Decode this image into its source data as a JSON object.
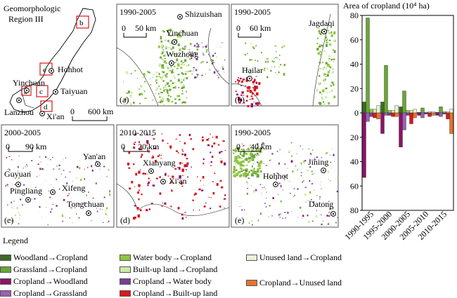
{
  "overview": {
    "title_line1": "Geomorphologic",
    "title_line2": "Region III",
    "cities": [
      "Hohhot",
      "Yinchuan",
      "Taiyuan",
      "Lanzhou",
      "Xi'an"
    ],
    "box_labels": [
      "a",
      "b",
      "c",
      "d",
      "e"
    ],
    "scale_zero": "0",
    "scale_label": "600 km"
  },
  "panels": [
    {
      "id": "a",
      "period": "1990-2005",
      "scale_zero": "0",
      "scale_label": "50 km",
      "cities": [
        "Shizuishan",
        "Yinchuan",
        "Wuzhong"
      ],
      "label": "(a)"
    },
    {
      "id": "b",
      "period": "1990-2005",
      "scale_zero": "0",
      "scale_label": "60 km",
      "cities": [
        "Jagdaqi",
        "Hailar"
      ],
      "label": "(b)"
    },
    {
      "id": "c",
      "period": "2000-2005",
      "scale_zero": "0",
      "scale_label": "90 km",
      "cities": [
        "Yan'an",
        "Guyuan",
        "Pingliang",
        "Xifeng",
        "Tongchuan"
      ],
      "label": "(c)"
    },
    {
      "id": "d",
      "period": "2010-2015",
      "scale_zero": "0",
      "scale_label": "20 km",
      "cities": [
        "Xianyang",
        "Xi'an"
      ],
      "label": "(d)"
    },
    {
      "id": "e",
      "period": "1990-2005",
      "scale_zero": "0",
      "scale_label": "40 km",
      "cities": [
        "Jining",
        "Hohhot",
        "Datong"
      ],
      "label": "(e)"
    }
  ],
  "legend": {
    "title": "Legend",
    "items": [
      {
        "label": "Woodland→Cropland",
        "color": "#3a6b1f"
      },
      {
        "label": "Grassland→Cropland",
        "color": "#6aa539"
      },
      {
        "label": "Cropland→Woodland",
        "color": "#8a1466"
      },
      {
        "label": "Cropland→Grassland",
        "color": "#9b5fb5"
      },
      {
        "label": "Water body→Cropland",
        "color": "#8cc63f"
      },
      {
        "label": "Built-up land→Cropland",
        "color": "#cfe8a8"
      },
      {
        "label": "Cropland→Water body",
        "color": "#7a3d98"
      },
      {
        "label": "Cropland→Built-up land",
        "color": "#d7191c"
      },
      {
        "label": "Unused land→Cropland",
        "color": "#e9f3d6"
      },
      {
        "label": "Cropland→Unused land",
        "color": "#e8742a"
      }
    ]
  },
  "chart_data": {
    "type": "bar",
    "title": "Area of cropland (10⁴ ha)",
    "categories": [
      "1990-1995",
      "1995-2000",
      "2000-2005",
      "2005-2010",
      "2010-2015"
    ],
    "ylim": [
      -80,
      80
    ],
    "yticks": [
      "80",
      "60",
      "40",
      "20",
      "0",
      "20",
      "40",
      "60",
      "80"
    ],
    "grid": false,
    "series": [
      {
        "name": "Woodland→Cropland",
        "color": "#3a6b1f",
        "values": [
          9,
          9,
          5,
          0.5,
          0.5
        ]
      },
      {
        "name": "Grassland→Cropland",
        "color": "#6aa539",
        "values": [
          78,
          39,
          18,
          4,
          5
        ]
      },
      {
        "name": "Water body→Cropland",
        "color": "#8cc63f",
        "values": [
          3,
          2,
          2,
          0.5,
          1
        ]
      },
      {
        "name": "Built-up land→Cropland",
        "color": "#cfe8a8",
        "values": [
          3,
          2,
          2,
          1,
          1
        ]
      },
      {
        "name": "Unused land→Cropland",
        "color": "#e9f3d6",
        "values": [
          6,
          6,
          3,
          1,
          3
        ]
      },
      {
        "name": "Cropland→Woodland",
        "color": "#8a1466",
        "values": [
          -53,
          -17,
          -28,
          -2,
          -2
        ]
      },
      {
        "name": "Cropland→Grassland",
        "color": "#9b5fb5",
        "values": [
          -7,
          -2,
          -14,
          -4,
          -3
        ]
      },
      {
        "name": "Cropland→Water body",
        "color": "#7a3d98",
        "values": [
          -3,
          -2,
          -2,
          -1,
          -1
        ]
      },
      {
        "name": "Cropland→Built-up land",
        "color": "#d7191c",
        "values": [
          -4,
          -3,
          -9,
          -3,
          -5
        ]
      },
      {
        "name": "Cropland→Unused land",
        "color": "#e8742a",
        "values": [
          -5,
          -3,
          -4,
          -2,
          -17
        ]
      }
    ]
  }
}
